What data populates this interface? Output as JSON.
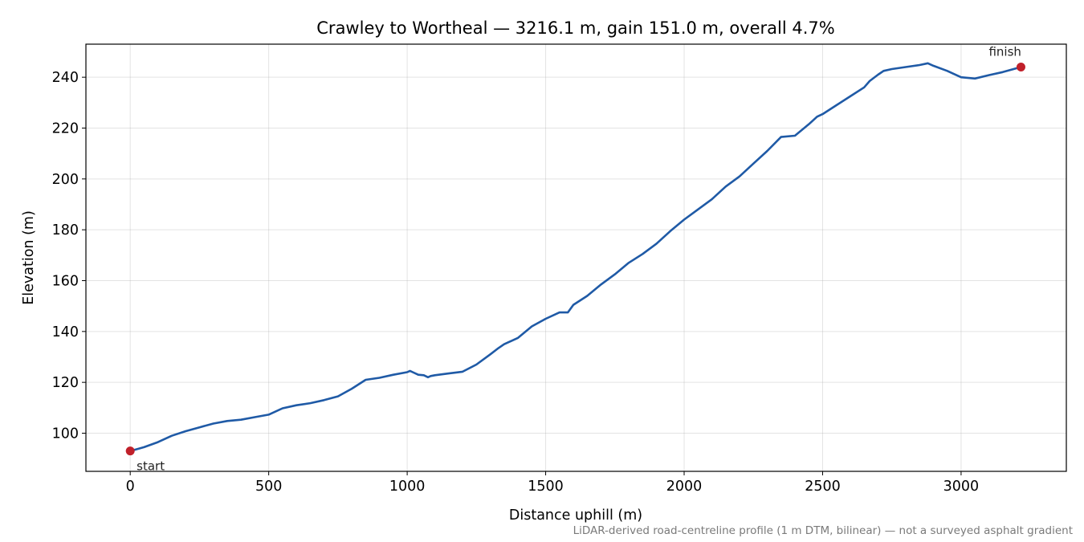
{
  "chart_data": {
    "type": "line",
    "title": "Crawley to Wortheal — 3216.1 m, gain 151.0 m, overall 4.7%",
    "xlabel": "Distance uphill (m)",
    "ylabel": "Elevation (m)",
    "xlim": [
      -160,
      3380
    ],
    "ylim": [
      85,
      253
    ],
    "xticks": [
      0,
      500,
      1000,
      1500,
      2000,
      2500,
      3000
    ],
    "yticks": [
      100,
      120,
      140,
      160,
      180,
      200,
      220,
      240
    ],
    "grid": true,
    "colors": {
      "line": "#1f5aa6",
      "markers": "#c0202a"
    },
    "series": [
      {
        "x": [
          0,
          50,
          100,
          150,
          200,
          250,
          300,
          350,
          400,
          450,
          500,
          550,
          600,
          650,
          700,
          750,
          800,
          850,
          900,
          950,
          1000,
          1010,
          1020,
          1040,
          1060,
          1075,
          1085,
          1100,
          1150,
          1200,
          1250,
          1300,
          1330,
          1350,
          1400,
          1450,
          1500,
          1550,
          1580,
          1600,
          1650,
          1700,
          1750,
          1800,
          1850,
          1900,
          1950,
          2000,
          2050,
          2100,
          2150,
          2200,
          2250,
          2300,
          2350,
          2400,
          2450,
          2480,
          2500,
          2550,
          2600,
          2650,
          2670,
          2700,
          2720,
          2750,
          2800,
          2850,
          2880,
          2900,
          2950,
          3000,
          3050,
          3100,
          3150,
          3216.1
        ],
        "y": [
          93,
          94.5,
          96.5,
          99,
          100.8,
          102.3,
          103.8,
          104.8,
          105.3,
          106.3,
          107.3,
          109.8,
          111,
          111.8,
          113,
          114.5,
          117.5,
          121,
          121.8,
          123,
          124,
          124.5,
          124,
          123,
          122.8,
          122,
          122.5,
          122.8,
          123.5,
          124.2,
          127,
          131,
          133.5,
          135,
          137.5,
          142,
          145,
          147.5,
          147.5,
          150.5,
          154,
          158.5,
          162.5,
          167,
          170.5,
          174.5,
          179.5,
          184,
          188,
          192,
          197,
          201,
          206,
          211,
          216.5,
          217,
          221.5,
          224.5,
          225.5,
          229,
          232.5,
          236,
          238.5,
          241,
          242.5,
          243.2,
          244,
          244.8,
          245.5,
          244.5,
          242.5,
          240,
          239.5,
          240.8,
          242,
          244
        ]
      }
    ],
    "annotations": [
      {
        "text": "start",
        "x": 0,
        "y": 93
      },
      {
        "text": "finish",
        "x": 3216.1,
        "y": 244
      }
    ],
    "footnote": "LiDAR-derived road-centreline profile (1 m DTM, bilinear) — not a surveyed asphalt gradient"
  }
}
